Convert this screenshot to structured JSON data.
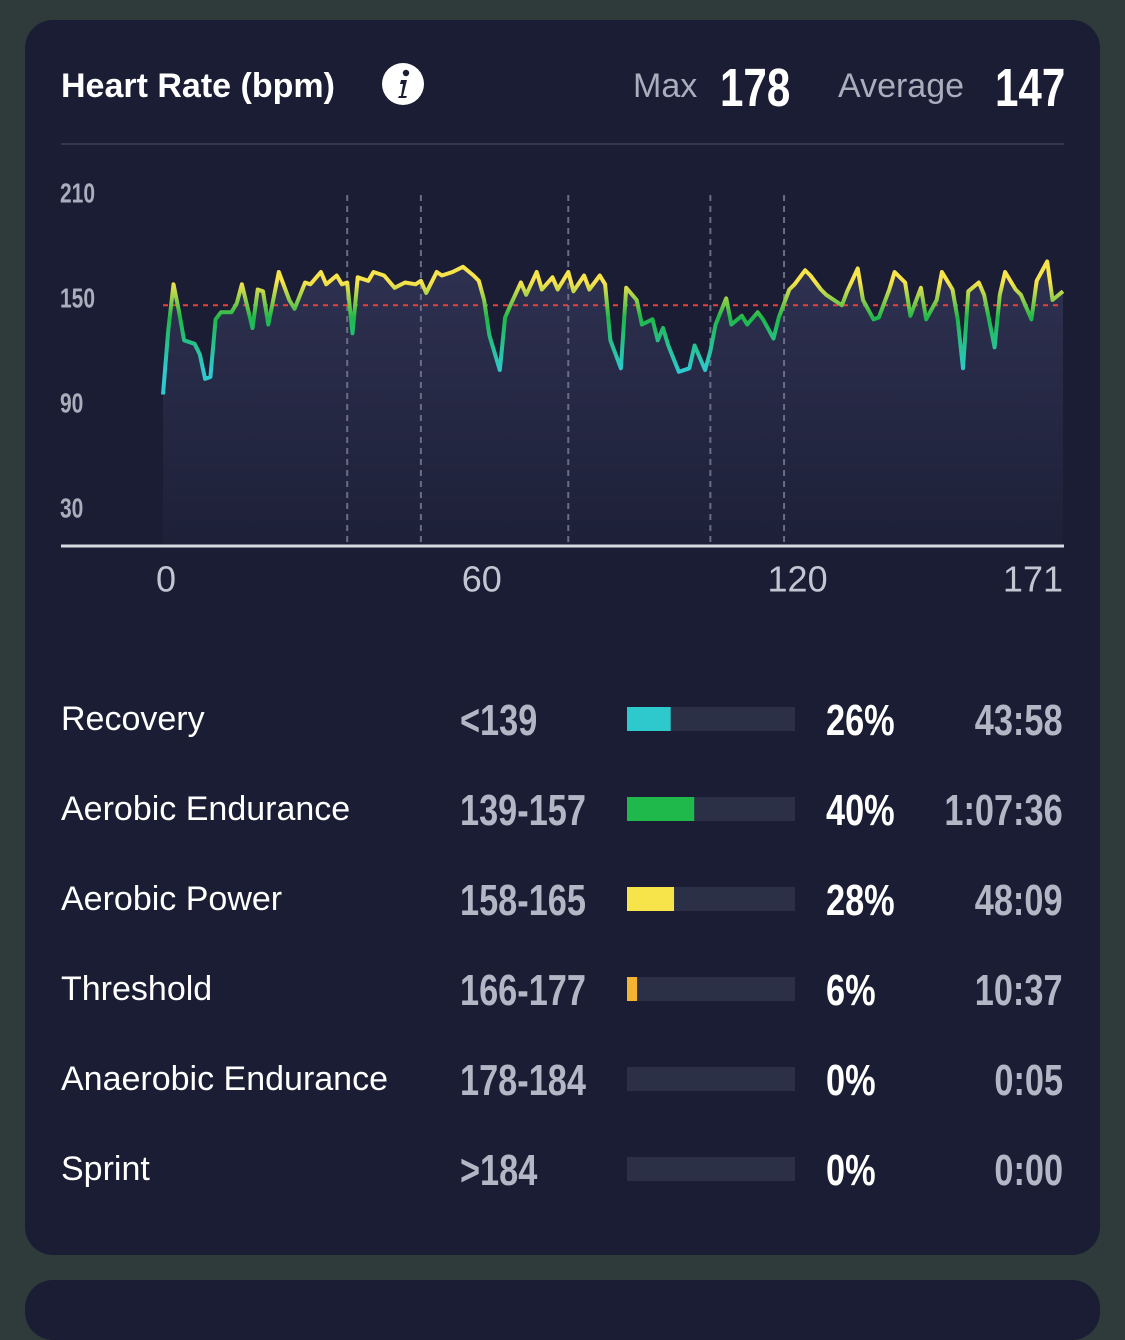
{
  "header": {
    "title": "Heart Rate (bpm)",
    "max_label": "Max",
    "max": 178,
    "average_label": "Average",
    "average": 147
  },
  "chart_data": {
    "type": "line",
    "x": [
      0,
      1,
      2,
      3,
      4,
      6,
      7,
      8,
      9,
      10,
      11,
      13,
      14,
      15,
      17,
      18,
      19,
      20,
      22,
      24,
      25,
      27,
      28,
      30,
      31,
      33,
      34,
      35,
      36,
      37,
      39,
      40,
      42,
      44,
      46,
      48,
      49,
      50,
      52,
      53,
      55,
      57,
      59,
      60,
      61,
      62,
      64,
      65,
      66,
      68,
      69,
      71,
      72,
      74,
      75,
      77,
      78,
      80,
      81,
      83,
      84,
      85,
      87,
      88,
      90,
      91,
      93,
      94,
      95,
      96,
      98,
      100,
      101,
      103,
      104,
      105,
      107,
      108,
      110,
      111,
      113,
      114,
      116,
      117,
      119,
      120,
      122,
      123,
      125,
      126,
      127,
      129,
      130,
      132,
      133,
      135,
      136,
      138,
      139,
      141,
      142,
      144,
      145,
      147,
      148,
      150,
      151,
      152,
      153,
      155,
      156,
      158,
      159,
      160,
      162,
      163,
      165,
      166,
      168,
      169,
      171
    ],
    "values": [
      96,
      133,
      159,
      144,
      127,
      125,
      119,
      105,
      106,
      139,
      143,
      143,
      148,
      159,
      134,
      156,
      155,
      136,
      166,
      150,
      145,
      160,
      159,
      166,
      159,
      164,
      159,
      160,
      131,
      163,
      161,
      166,
      164,
      157,
      160,
      159,
      161,
      154,
      166,
      164,
      166,
      169,
      164,
      161,
      150,
      130,
      110,
      140,
      147,
      160,
      153,
      166,
      156,
      163,
      156,
      166,
      155,
      164,
      156,
      164,
      159,
      127,
      111,
      157,
      150,
      136,
      139,
      127,
      134,
      124,
      109,
      111,
      124,
      110,
      121,
      136,
      151,
      136,
      141,
      136,
      143,
      139,
      128,
      140,
      156,
      159,
      167,
      164,
      156,
      153,
      151,
      147,
      155,
      168,
      150,
      139,
      140,
      156,
      166,
      160,
      141,
      157,
      139,
      150,
      166,
      156,
      139,
      111,
      155,
      160,
      153,
      123,
      153,
      166,
      156,
      153,
      139,
      161,
      172,
      150,
      155
    ],
    "xlim": [
      0,
      171
    ],
    "xticks": [
      0,
      60,
      120,
      171
    ],
    "ylim": [
      10,
      210
    ],
    "yticks": [
      30,
      90,
      150,
      210
    ],
    "laps": [
      35,
      49,
      77,
      104,
      118
    ]
  },
  "zones": [
    {
      "name": "Recovery",
      "range": "<139",
      "percent": 26,
      "percent_label": "26%",
      "time": "43:58",
      "color": "#2ec9cc"
    },
    {
      "name": "Aerobic Endurance",
      "range": "139-157",
      "percent": 40,
      "percent_label": "40%",
      "time": "1:07:36",
      "color": "#1fb84a"
    },
    {
      "name": "Aerobic Power",
      "range": "158-165",
      "percent": 28,
      "percent_label": "28%",
      "time": "48:09",
      "color": "#f7e34a"
    },
    {
      "name": "Threshold",
      "range": "166-177",
      "percent": 6,
      "percent_label": "6%",
      "time": "10:37",
      "color": "#f5b332"
    },
    {
      "name": "Anaerobic Endurance",
      "range": "178-184",
      "percent": 0,
      "percent_label": "0%",
      "time": "0:05",
      "color": "#f07a2a"
    },
    {
      "name": "Sprint",
      "range": ">184",
      "percent": 0,
      "percent_label": "0%",
      "time": "0:00",
      "color": "#e8413a"
    }
  ]
}
